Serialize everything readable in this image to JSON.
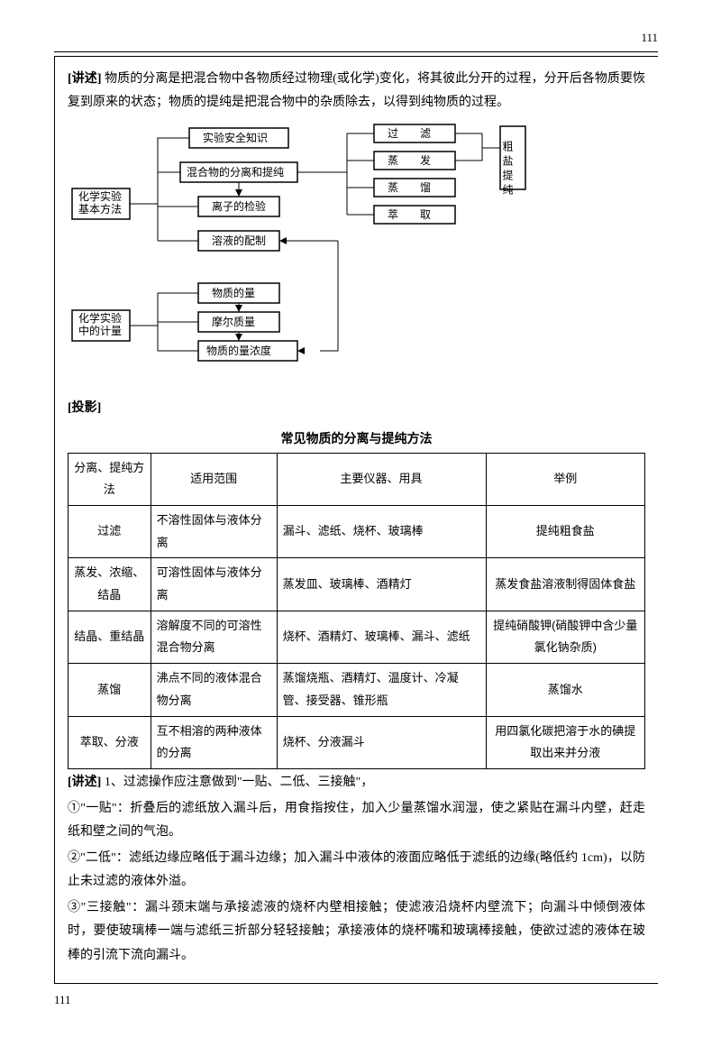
{
  "page_number_top": "111",
  "page_number_bottom": "111",
  "intro_label": "[讲述]",
  "intro_text": " 物质的分离是把混合物中各物质经过物理(或化学)变化，将其彼此分开的过程，分开后各物质要恢复到原来的状态；物质的提纯是把混合物中的杂质除去，以得到纯物质的过程。",
  "projection_label": "[投影]",
  "diagram": {
    "root1": "化学实验基本方法",
    "n1": "实验安全知识",
    "n2": "混合物的分离和提纯",
    "n3": "离子的检验",
    "n4": "溶液的配制",
    "m1": "过　　滤",
    "m2": "蒸　　发",
    "m3": "蒸　　馏",
    "m4": "萃　　取",
    "right": "粗盐提纯",
    "root2": "化学实验中的计量",
    "q1": "物质的量",
    "q2": "摩尔质量",
    "q3": "物质的量浓度"
  },
  "table": {
    "title": "常见物质的分离与提纯方法",
    "headers": [
      "分离、提纯方法",
      "适用范围",
      "主要仪器、用具",
      "举例"
    ],
    "rows": [
      [
        "过滤",
        "不溶性固体与液体分离",
        "漏斗、滤纸、烧杯、玻璃棒",
        "提纯粗食盐"
      ],
      [
        "蒸发、浓缩、结晶",
        "可溶性固体与液体分离",
        "蒸发皿、玻璃棒、酒精灯",
        "蒸发食盐溶液制得固体食盐"
      ],
      [
        "结晶、重结晶",
        "溶解度不同的可溶性混合物分离",
        "烧杯、酒精灯、玻璃棒、漏斗、滤纸",
        "提纯硝酸钾(硝酸钾中含少量氯化钠杂质)"
      ],
      [
        "蒸馏",
        "沸点不同的液体混合物分离",
        "蒸馏烧瓶、酒精灯、温度计、冷凝管、接受器、锥形瓶",
        "蒸馏水"
      ],
      [
        "萃取、分液",
        "互不相溶的两种液体的分离",
        "烧杯、分液漏斗",
        "用四氯化碳把溶于水的碘提取出来并分液"
      ]
    ]
  },
  "notes_label": "[讲述]",
  "notes_intro": " 1、过滤操作应注意做到\"一贴、二低、三接触\"，",
  "note1": "①\"一贴\"：折叠后的滤纸放入漏斗后，用食指按住，加入少量蒸馏水润湿，使之紧贴在漏斗内壁，赶走纸和壁之间的气泡。",
  "note2": "②\"二低\"：滤纸边缘应略低于漏斗边缘；加入漏斗中液体的液面应略低于滤纸的边缘(略低约 1cm)，以防止未过滤的液体外溢。",
  "note3": "③\"三接触\"：漏斗颈末端与承接滤液的烧杯内壁相接触；使滤液沿烧杯内壁流下；向漏斗中倾倒液体时，要使玻璃棒一端与滤纸三折部分轻轻接触；承接液体的烧杯嘴和玻璃棒接触，使欲过滤的液体在玻棒的引流下流向漏斗。"
}
